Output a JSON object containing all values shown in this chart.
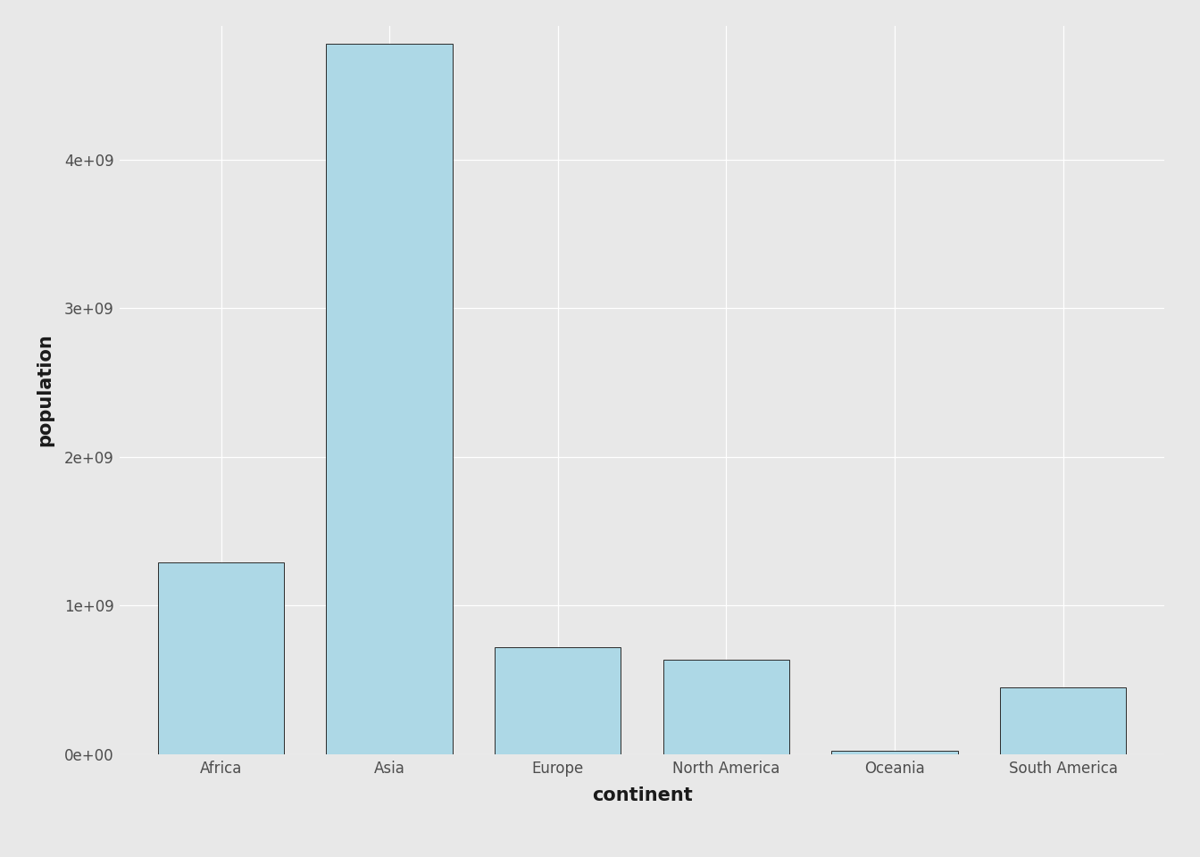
{
  "categories": [
    "Africa",
    "Asia",
    "Europe",
    "North America",
    "Oceania",
    "South America"
  ],
  "values": [
    1290000000.0,
    4780000000.0,
    720000000.0,
    635000000.0,
    24000000.0,
    450000000.0
  ],
  "bar_color": "#ADD8E6",
  "bar_edgecolor": "#2a2a2a",
  "bar_linewidth": 0.7,
  "xlabel": "continent",
  "ylabel": "population",
  "xlabel_fontsize": 15,
  "ylabel_fontsize": 15,
  "tick_fontsize": 12,
  "background_color": "#E8E8E8",
  "panel_color": "#E8E8E8",
  "grid_color": "#ffffff",
  "ylim": [
    0,
    4900000000.0
  ],
  "yticks": [
    0,
    1000000000.0,
    2000000000.0,
    3000000000.0,
    4000000000.0
  ],
  "ytick_labels": [
    "0e+00",
    "1e+09",
    "2e+09",
    "3e+09",
    "4e+09"
  ]
}
